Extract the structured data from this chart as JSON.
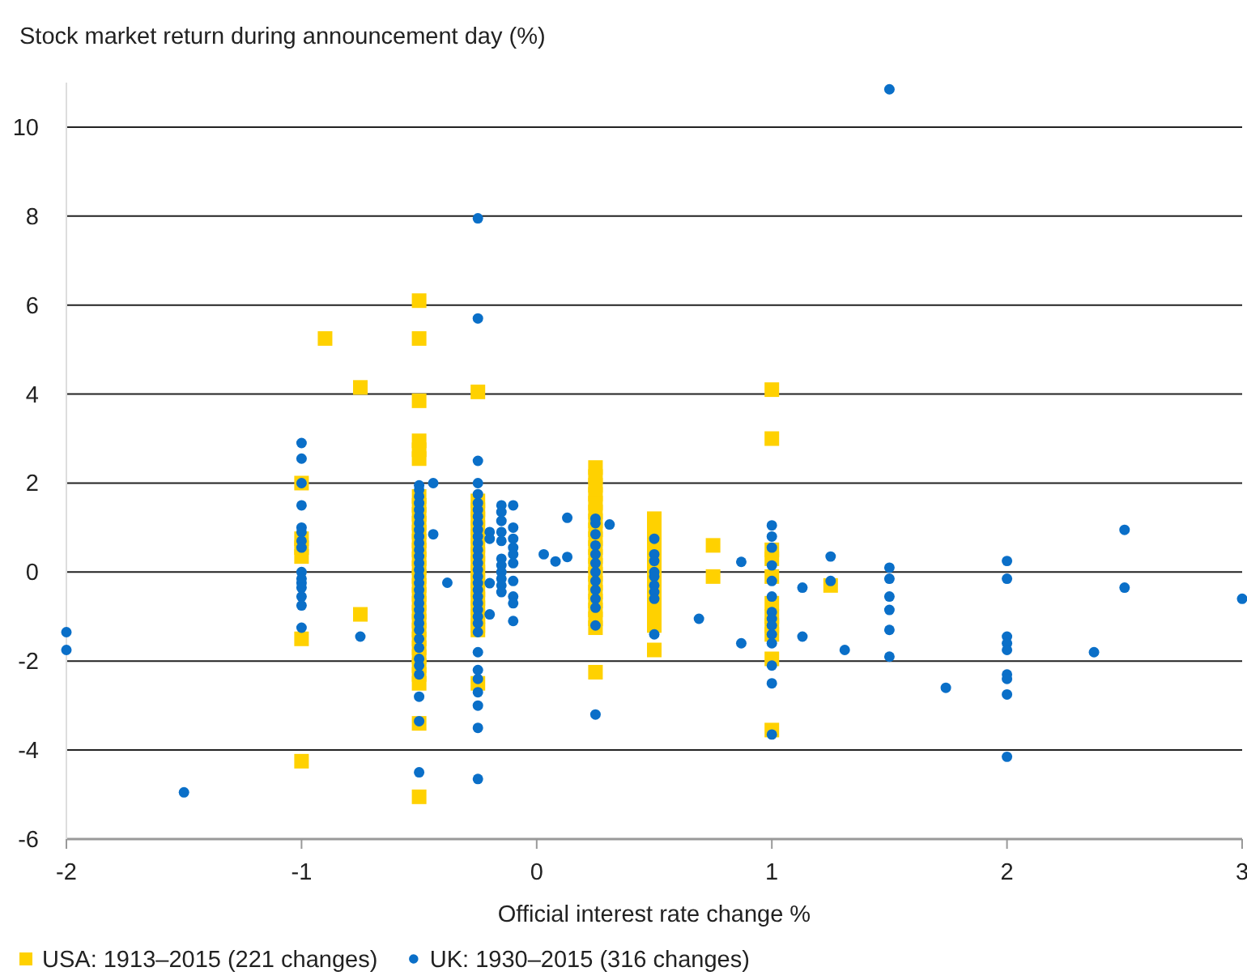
{
  "chart_data": {
    "type": "scatter",
    "ylabel": "Stock market return during announcement day (%)",
    "xlabel": "Official interest rate change %",
    "xlim": [
      -2,
      3
    ],
    "xticks": [
      -2,
      -1,
      0,
      1,
      2,
      3
    ],
    "ylim": [
      -6,
      11
    ],
    "yticks": [
      -6,
      -4,
      -2,
      0,
      2,
      4,
      6,
      8,
      10
    ],
    "grid": "y",
    "legend": "bottom",
    "series": [
      {
        "name": "USA: 1913–2015 (221 changes)",
        "color": "#ffd100",
        "marker": "square",
        "x": [
          -1,
          -1,
          -1,
          -1,
          -1,
          -1,
          -0.9,
          -0.75,
          -0.75,
          -0.5,
          -0.5,
          -0.5,
          -0.5,
          -0.5,
          -0.5,
          -0.5,
          -0.5,
          -0.5,
          -0.5,
          -0.5,
          -0.5,
          -0.5,
          -0.5,
          -0.5,
          -0.5,
          -0.5,
          -0.5,
          -0.5,
          -0.5,
          -0.5,
          -0.5,
          -0.5,
          -0.5,
          -0.5,
          -0.5,
          -0.5,
          -0.5,
          -0.5,
          -0.5,
          -0.25,
          -0.25,
          -0.25,
          -0.25,
          -0.25,
          -0.25,
          -0.25,
          -0.25,
          -0.25,
          -0.25,
          -0.25,
          -0.25,
          -0.25,
          -0.25,
          -0.25,
          -0.25,
          -0.25,
          -0.25,
          0.25,
          0.25,
          0.25,
          0.25,
          0.25,
          0.25,
          0.25,
          0.25,
          0.25,
          0.25,
          0.25,
          0.25,
          0.25,
          0.25,
          0.25,
          0.25,
          0.25,
          0.25,
          0.25,
          0.25,
          0.5,
          0.5,
          0.5,
          0.5,
          0.5,
          0.5,
          0.5,
          0.5,
          0.5,
          0.5,
          0.5,
          0.5,
          0.5,
          0.5,
          0.75,
          0.75,
          1,
          1,
          1,
          1,
          1,
          1,
          1,
          1,
          1,
          1,
          1,
          1.25
        ],
        "values": [
          2.0,
          0.75,
          0.55,
          0.35,
          -1.5,
          -4.25,
          5.25,
          4.15,
          -0.95,
          6.1,
          5.25,
          3.85,
          2.95,
          2.75,
          2.55,
          1.7,
          1.5,
          1.3,
          1.1,
          0.9,
          0.7,
          0.5,
          0.3,
          0.1,
          -0.1,
          -0.3,
          -0.5,
          -0.7,
          -0.9,
          -1.1,
          -1.3,
          -1.5,
          -1.7,
          -1.9,
          -2.1,
          -2.3,
          -2.5,
          -3.4,
          -5.05,
          4.05,
          1.6,
          1.4,
          1.2,
          1.0,
          0.8,
          0.6,
          0.4,
          0.2,
          0,
          -0.2,
          -0.4,
          -0.6,
          -0.8,
          -1.0,
          -1.2,
          -1.3,
          -2.5,
          2.35,
          2.15,
          1.95,
          1.75,
          1.55,
          1.35,
          1.15,
          0.95,
          0.75,
          0.55,
          0.35,
          0.15,
          -0.05,
          -0.25,
          -0.45,
          -0.65,
          -0.85,
          -1.05,
          -1.25,
          -2.25,
          1.2,
          1.0,
          0.8,
          0.6,
          0.4,
          0.2,
          0,
          -0.2,
          -0.4,
          -0.6,
          -0.8,
          -1.0,
          -1.2,
          -1.75,
          0.6,
          -0.1,
          4.1,
          3.0,
          0.5,
          0.3,
          -0.1,
          -0.7,
          -1.0,
          -1.2,
          -1.4,
          -1.95,
          -3.55,
          -0.3
        ]
      },
      {
        "name": "UK: 1930–2015 (316 changes)",
        "color": "#0a6fc8",
        "marker": "circle",
        "x": [
          -2,
          -2,
          -1.5,
          -1,
          -1,
          -1,
          -1,
          -1,
          -1,
          -1,
          -1,
          -1,
          -1,
          -1,
          -1,
          -1,
          -1,
          -1,
          -0.75,
          -0.5,
          -0.5,
          -0.5,
          -0.5,
          -0.5,
          -0.5,
          -0.5,
          -0.5,
          -0.5,
          -0.5,
          -0.5,
          -0.5,
          -0.5,
          -0.5,
          -0.5,
          -0.5,
          -0.5,
          -0.5,
          -0.5,
          -0.5,
          -0.5,
          -0.5,
          -0.5,
          -0.5,
          -0.5,
          -0.5,
          -0.5,
          -0.5,
          -0.5,
          -0.5,
          -0.5,
          -0.44,
          -0.44,
          -0.38,
          -0.25,
          -0.25,
          -0.25,
          -0.25,
          -0.25,
          -0.25,
          -0.25,
          -0.25,
          -0.25,
          -0.25,
          -0.25,
          -0.25,
          -0.25,
          -0.25,
          -0.25,
          -0.25,
          -0.25,
          -0.25,
          -0.25,
          -0.25,
          -0.25,
          -0.25,
          -0.25,
          -0.25,
          -0.25,
          -0.25,
          -0.25,
          -0.25,
          -0.25,
          -0.25,
          -0.25,
          -0.25,
          -0.2,
          -0.2,
          -0.2,
          -0.2,
          -0.15,
          -0.15,
          -0.15,
          -0.15,
          -0.15,
          -0.15,
          -0.15,
          -0.15,
          -0.15,
          -0.15,
          -0.15,
          -0.1,
          -0.1,
          -0.1,
          -0.1,
          -0.1,
          -0.1,
          -0.1,
          -0.1,
          -0.1,
          -0.1,
          0.03,
          0.08,
          0.13,
          0.13,
          0.31,
          0.25,
          0.25,
          0.25,
          0.25,
          0.25,
          0.25,
          0.25,
          0.25,
          0.25,
          0.25,
          0.25,
          0.25,
          0.25,
          0.5,
          0.5,
          0.5,
          0.5,
          0.5,
          0.5,
          0.5,
          0.5,
          0.5,
          0.69,
          0.87,
          0.87,
          1,
          1,
          1,
          1,
          1,
          1,
          1,
          1,
          1,
          1,
          1,
          1,
          1,
          1,
          1.13,
          1.13,
          1.25,
          1.25,
          1.31,
          1.5,
          1.5,
          1.5,
          1.5,
          1.5,
          1.5,
          1.5,
          1.74,
          2,
          2,
          2,
          2,
          2,
          2,
          2,
          2,
          2,
          2.37,
          2.5,
          2.5,
          3
        ],
        "values": [
          -1.35,
          -1.75,
          -4.95,
          2.9,
          2.55,
          2.0,
          1.5,
          1.0,
          0.9,
          0.7,
          0.55,
          0,
          -0.15,
          -0.25,
          -0.35,
          -0.55,
          -0.75,
          -1.25,
          -1.45,
          1.95,
          1.85,
          1.7,
          1.55,
          1.4,
          1.25,
          1.1,
          0.95,
          0.8,
          0.65,
          0.5,
          0.35,
          0.2,
          0.05,
          -0.1,
          -0.25,
          -0.4,
          -0.55,
          -0.7,
          -0.85,
          -1.0,
          -1.15,
          -1.3,
          -1.5,
          -1.7,
          -1.95,
          -2.1,
          -2.3,
          -2.8,
          -3.35,
          -4.5,
          2.0,
          0.85,
          -0.24,
          7.95,
          5.7,
          2.5,
          2.0,
          1.75,
          1.55,
          1.4,
          1.25,
          1.1,
          0.95,
          0.8,
          0.65,
          0.5,
          0.35,
          0.2,
          0.05,
          -0.1,
          -0.25,
          -0.4,
          -0.55,
          -0.7,
          -0.85,
          -1.0,
          -1.15,
          -1.35,
          -1.8,
          -2.2,
          -2.4,
          -2.7,
          -3.0,
          -3.5,
          -4.65,
          0.9,
          0.75,
          -0.25,
          -0.95,
          1.5,
          1.35,
          1.15,
          0.9,
          0.7,
          0.3,
          0.15,
          0,
          -0.15,
          -0.3,
          -0.45,
          1.5,
          1.0,
          0.75,
          0.55,
          0.4,
          0.2,
          -0.2,
          -0.55,
          -0.7,
          -1.1,
          0.4,
          0.24,
          1.22,
          0.34,
          1.07,
          1.2,
          1.1,
          0.85,
          0.6,
          0.4,
          0.2,
          0,
          -0.2,
          -0.4,
          -0.6,
          -0.8,
          -1.2,
          -3.2,
          0.75,
          0.4,
          0.25,
          0,
          -0.1,
          -0.3,
          -0.45,
          -0.6,
          -1.4,
          -1.05,
          0.23,
          -1.6,
          1.05,
          0.8,
          0.55,
          0.15,
          -0.2,
          -0.55,
          -0.9,
          -1.05,
          -1.2,
          -1.4,
          -1.6,
          -2.1,
          -2.5,
          -3.65,
          -0.35,
          -1.45,
          0.35,
          -0.2,
          -1.75,
          10.85,
          0.1,
          -0.15,
          -0.55,
          -0.85,
          -1.3,
          -1.9,
          -2.6,
          0.25,
          -0.15,
          -1.45,
          -1.6,
          -1.75,
          -2.3,
          -2.4,
          -2.75,
          -4.15,
          -1.8,
          0.95,
          -0.35,
          -0.6
        ]
      }
    ]
  }
}
